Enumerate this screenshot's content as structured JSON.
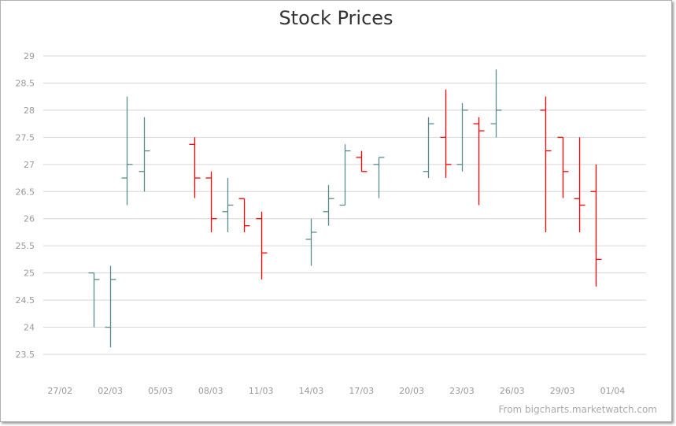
{
  "chart_data": {
    "type": "ohlc",
    "title": "Stock Prices",
    "credit": "From bigcharts.marketwatch.com",
    "ylim": [
      23.5,
      29
    ],
    "yticks": [
      "23.5",
      "24",
      "24.5",
      "25",
      "25.5",
      "26",
      "26.5",
      "27",
      "27.5",
      "28",
      "28.5",
      "29"
    ],
    "xticks": [
      "27/02",
      "02/03",
      "05/03",
      "08/03",
      "11/03",
      "14/03",
      "17/03",
      "20/03",
      "23/03",
      "26/03",
      "29/03",
      "01/04"
    ],
    "xlim": [
      "26/02",
      "03/04"
    ],
    "grid": true,
    "colors": {
      "up": "#5b8a8c",
      "down": "#ff0000"
    },
    "color_rule": "close vs previous close",
    "bars": [
      {
        "date": "01/03",
        "open": 25.0,
        "high": 25.0,
        "low": 24.0,
        "close": 24.88
      },
      {
        "date": "02/03",
        "open": 24.0,
        "high": 25.13,
        "low": 23.63,
        "close": 24.88
      },
      {
        "date": "03/03",
        "open": 26.75,
        "high": 28.25,
        "low": 26.25,
        "close": 27.0
      },
      {
        "date": "04/03",
        "open": 26.87,
        "high": 27.87,
        "low": 26.5,
        "close": 27.25
      },
      {
        "date": "07/03",
        "open": 27.37,
        "high": 27.5,
        "low": 26.38,
        "close": 26.75
      },
      {
        "date": "08/03",
        "open": 26.75,
        "high": 26.87,
        "low": 25.75,
        "close": 26.0
      },
      {
        "date": "09/03",
        "open": 26.13,
        "high": 26.75,
        "low": 25.75,
        "close": 26.25
      },
      {
        "date": "10/03",
        "open": 26.37,
        "high": 26.37,
        "low": 25.75,
        "close": 25.87
      },
      {
        "date": "11/03",
        "open": 26.0,
        "high": 26.13,
        "low": 24.88,
        "close": 25.37
      },
      {
        "date": "14/03",
        "open": 25.62,
        "high": 26.0,
        "low": 25.13,
        "close": 25.75
      },
      {
        "date": "15/03",
        "open": 26.13,
        "high": 26.62,
        "low": 25.87,
        "close": 26.37
      },
      {
        "date": "16/03",
        "open": 26.25,
        "high": 27.37,
        "low": 26.25,
        "close": 27.25
      },
      {
        "date": "17/03",
        "open": 27.13,
        "high": 27.25,
        "low": 26.87,
        "close": 26.87
      },
      {
        "date": "18/03",
        "open": 27.0,
        "high": 27.13,
        "low": 26.38,
        "close": 27.13
      },
      {
        "date": "21/03",
        "open": 26.87,
        "high": 27.87,
        "low": 26.75,
        "close": 27.75
      },
      {
        "date": "22/03",
        "open": 27.5,
        "high": 28.38,
        "low": 26.75,
        "close": 27.0
      },
      {
        "date": "23/03",
        "open": 27.0,
        "high": 28.13,
        "low": 26.87,
        "close": 28.0
      },
      {
        "date": "24/03",
        "open": 27.75,
        "high": 27.87,
        "low": 26.25,
        "close": 27.62
      },
      {
        "date": "25/03",
        "open": 27.75,
        "high": 28.75,
        "low": 27.5,
        "close": 28.0
      },
      {
        "date": "28/03",
        "open": 28.0,
        "high": 28.25,
        "low": 25.75,
        "close": 27.25
      },
      {
        "date": "29/03",
        "open": 27.5,
        "high": 27.5,
        "low": 26.38,
        "close": 26.87
      },
      {
        "date": "30/03",
        "open": 26.37,
        "high": 27.5,
        "low": 25.75,
        "close": 26.25
      },
      {
        "date": "31/03",
        "open": 26.5,
        "high": 27.0,
        "low": 24.75,
        "close": 25.25
      }
    ]
  }
}
